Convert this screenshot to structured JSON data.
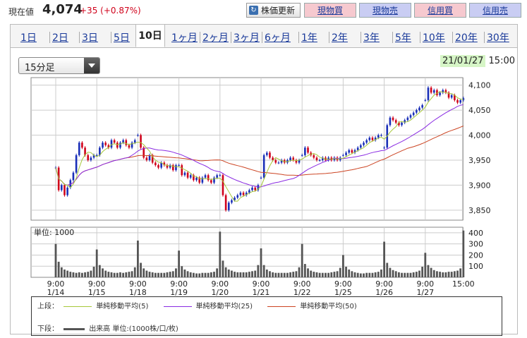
{
  "header": {
    "price_label": "現在値",
    "price": "4,074",
    "change": "+35 (+0.87%)",
    "refresh_label": "株価更新",
    "trade_buttons": [
      {
        "label": "現物買",
        "bg": "#f6c9cf"
      },
      {
        "label": "現物売",
        "bg": "#c9cdf3"
      },
      {
        "label": "信用買",
        "bg": "#f6c9cf"
      },
      {
        "label": "信用売",
        "bg": "#c9cdf3"
      }
    ]
  },
  "tabs": [
    "1日",
    "2日",
    "3日",
    "5日",
    "10日",
    "1ヶ月",
    "2ヶ月",
    "3ヶ月",
    "6ヶ月",
    "1年",
    "2年",
    "3年",
    "5年",
    "10年",
    "20年",
    "30年"
  ],
  "active_tab": "10日",
  "interval": {
    "selected": "15分足"
  },
  "timestamp": {
    "date": "21/01/27",
    "time": "15:00"
  },
  "legend": {
    "upper_label": "上段：",
    "lower_label": "下段：",
    "ma5": "単純移動平均(5)",
    "ma25": "単純移動平均(25)",
    "ma50": "単純移動平均(50)",
    "volume": "出来高 単位:(1000株/口/枚)",
    "colors": {
      "ma5": "#a6c83a",
      "ma25": "#8a2be2",
      "ma50": "#cc4422",
      "volume": "#555555"
    }
  },
  "chart_data": [
    {
      "type": "candlestick",
      "interval": "15min",
      "ylim": [
        3830,
        4115
      ],
      "yticks": [
        3850,
        3900,
        3950,
        4000,
        4050,
        4100
      ],
      "ytick_labels": [
        "3,850",
        "3,900",
        "3,950",
        "4,000",
        "4,050",
        "4,100"
      ],
      "days": [
        {
          "label": "9:00\n1/14",
          "open": 3935,
          "points": [
            3935,
            3890,
            3900,
            3880,
            3895,
            3910,
            3925,
            3960,
            3985,
            3975,
            3960,
            3950,
            3955,
            3960
          ]
        },
        {
          "label": "9:00\n1/15",
          "open": 3960,
          "points": [
            3960,
            3975,
            3985,
            3980,
            3975,
            3990,
            3985,
            3975,
            3985,
            3990,
            3980,
            3975,
            3985,
            3990
          ]
        },
        {
          "label": "9:00\n1/18",
          "open": 4000,
          "points": [
            4000,
            3975,
            3955,
            3950,
            3960,
            3945,
            3940,
            3935,
            3945,
            3940,
            3935,
            3940,
            3930,
            3940
          ]
        },
        {
          "label": "9:00\n1/19",
          "open": 3940,
          "points": [
            3940,
            3920,
            3925,
            3915,
            3920,
            3910,
            3915,
            3905,
            3915,
            3920,
            3910,
            3905,
            3915,
            3920
          ]
        },
        {
          "label": "9:00\n1/20",
          "open": 3920,
          "points": [
            3920,
            3880,
            3850,
            3865,
            3870,
            3875,
            3880,
            3885,
            3880,
            3885,
            3890,
            3895,
            3890,
            3900
          ]
        },
        {
          "label": "9:00\n1/21",
          "open": 3915,
          "points": [
            3915,
            3960,
            3965,
            3955,
            3950,
            3945,
            3945,
            3950,
            3945,
            3950,
            3955,
            3950,
            3945,
            3950
          ]
        },
        {
          "label": "9:00\n1/22",
          "open": 3960,
          "points": [
            3960,
            3975,
            3965,
            3960,
            3955,
            3950,
            3950,
            3955,
            3950,
            3955,
            3950,
            3955,
            3950,
            3955
          ]
        },
        {
          "label": "9:00\n1/25",
          "open": 3960,
          "points": [
            3960,
            3965,
            3970,
            3965,
            3970,
            3975,
            3980,
            3985,
            3990,
            3995,
            3990,
            3995,
            4000,
            4000
          ]
        },
        {
          "label": "9:00\n1/26",
          "open": 3975,
          "points": [
            3975,
            4020,
            4035,
            4030,
            4025,
            4020,
            4025,
            4030,
            4035,
            4040,
            4045,
            4050,
            4055,
            4060
          ]
        },
        {
          "label": "9:00\n1/27",
          "open": 4070,
          "points": [
            4070,
            4095,
            4085,
            4090,
            4080,
            4085,
            4090,
            4085,
            4075,
            4080,
            4070,
            4065,
            4070,
            4074
          ]
        }
      ],
      "last_label": "15:00"
    },
    {
      "type": "bar",
      "series_name": "出来高",
      "unit_label": "単位: 1000",
      "ylim": [
        0,
        450
      ],
      "yticks": [
        100,
        200,
        300,
        400
      ],
      "ytick_labels": [
        "100",
        "200",
        "300",
        "400"
      ],
      "daily_values": [
        [
          300,
          140,
          90,
          70,
          60,
          50,
          45,
          40,
          45,
          40,
          45,
          50,
          60,
          95
        ],
        [
          250,
          110,
          80,
          60,
          50,
          45,
          40,
          40,
          45,
          40,
          45,
          50,
          55,
          90
        ],
        [
          330,
          130,
          80,
          60,
          50,
          45,
          40,
          40,
          40,
          40,
          45,
          50,
          55,
          80
        ],
        [
          240,
          100,
          70,
          55,
          45,
          40,
          35,
          35,
          40,
          40,
          40,
          45,
          50,
          80
        ],
        [
          410,
          150,
          90,
          70,
          60,
          50,
          45,
          45,
          45,
          45,
          50,
          55,
          60,
          110
        ],
        [
          260,
          110,
          70,
          55,
          45,
          40,
          40,
          40,
          40,
          40,
          45,
          50,
          55,
          90
        ],
        [
          300,
          120,
          80,
          60,
          50,
          45,
          40,
          40,
          40,
          40,
          45,
          50,
          55,
          85
        ],
        [
          200,
          95,
          70,
          55,
          45,
          40,
          35,
          35,
          40,
          40,
          40,
          45,
          50,
          70
        ],
        [
          320,
          130,
          85,
          65,
          55,
          45,
          40,
          40,
          40,
          40,
          45,
          50,
          60,
          95
        ],
        [
          220,
          110,
          85,
          65,
          55,
          50,
          45,
          45,
          50,
          50,
          55,
          60,
          80,
          420
        ]
      ]
    }
  ]
}
